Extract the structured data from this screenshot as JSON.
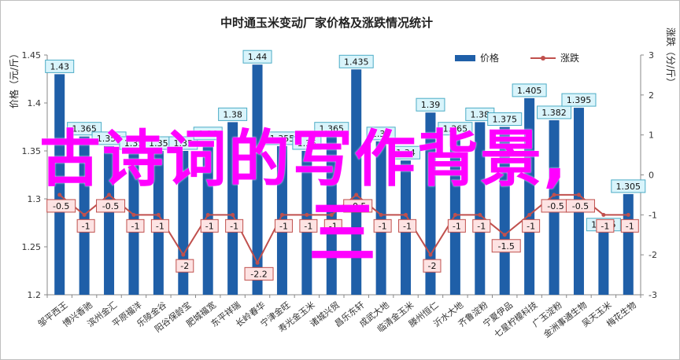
{
  "chart_data": {
    "type": "bar+line",
    "title": "中时通玉米变动厂家价格及涨跌情况统计",
    "categories": [
      "邹平西王",
      "博兴香驰",
      "滨州金汇",
      "平原福洋",
      "乐陵金谷",
      "阳谷保龄宝",
      "肥城福宽",
      "东平祥瑞",
      "长岭春华",
      "宁津金旺",
      "寿光金玉米",
      "诸城兴贸",
      "昌乐东轩",
      "成武大地",
      "临清金玉米",
      "滕州恒仁",
      "沂水大地",
      "齐鲁淀粉",
      "宁夏伊品",
      "七星柠檬科技",
      "广玉淀粉",
      "金洲事通生物",
      "吴天玉米",
      "梅花生物"
    ],
    "series": [
      {
        "name": "价格",
        "type": "bar",
        "axis": "left",
        "color": "#1f5fa8",
        "values": [
          1.43,
          1.365,
          1.355,
          1.35,
          1.35,
          1.35,
          1.36,
          1.38,
          1.44,
          1.355,
          1.35,
          1.365,
          1.435,
          1.36,
          1.34,
          1.39,
          1.365,
          1.38,
          1.375,
          1.405,
          1.382,
          1.395,
          1.265,
          1.305
        ],
        "labels": [
          "1.43",
          "1.365",
          "1.355",
          "1.35",
          "1.35",
          "1.35",
          "1.36",
          "1.38",
          "1.44",
          "1.355",
          "1.35",
          "1.365",
          "1.435",
          "1.36",
          "1.34",
          "1.39",
          "1.365",
          "1.38",
          "1.375",
          "1.405",
          "1.382",
          "1.395",
          "1.265",
          "1.305"
        ]
      },
      {
        "name": "涨跌",
        "type": "line",
        "axis": "right",
        "color": "#c0504d",
        "values": [
          -0.5,
          -1,
          -0.5,
          -1,
          -1,
          -2,
          -1,
          -1,
          -2.2,
          -1,
          -1,
          -1,
          -0.5,
          -1,
          -1,
          -2,
          -1,
          -1,
          -1.5,
          -1,
          -0.5,
          -0.5,
          -1,
          -1
        ],
        "labels": [
          "-0.5",
          "-1",
          "-0.5",
          "-1",
          "-1",
          "-2",
          "-1",
          "-1",
          "-2.2",
          "-1",
          "-1",
          "-1",
          "-0.5",
          "-1",
          "-1",
          "-2",
          "-1",
          "-1",
          "-1.5",
          "-1",
          "-0.5",
          "-0.5",
          "-1",
          "-1"
        ]
      }
    ],
    "y_left": {
      "label": "价格（元/斤）",
      "ylim": [
        1.2,
        1.45
      ],
      "ticks": [
        "1.2",
        "1.25",
        "1.3",
        "1.35",
        "1.4",
        "1.45"
      ]
    },
    "y_right": {
      "label": "涨跌（分/斤）",
      "ylim": [
        -3,
        3
      ],
      "ticks": [
        "-3",
        "-2",
        "-1",
        "0",
        "1",
        "2",
        "3"
      ]
    },
    "legend": {
      "placement": "top-center",
      "entries": [
        "价格",
        "涨跌"
      ]
    },
    "grid": false
  },
  "overlay": {
    "line1": "古诗词的写作背景,",
    "line2": "三"
  },
  "colors": {
    "bar": "#1f5fa8",
    "line": "#c0504d",
    "bar_label_bg": "#d9f4fb",
    "bar_label_border": "#4bacc6",
    "line_label_bg": "#fde3e3",
    "line_label_border": "#c0504d",
    "overlay_text": "#ff00ff"
  }
}
